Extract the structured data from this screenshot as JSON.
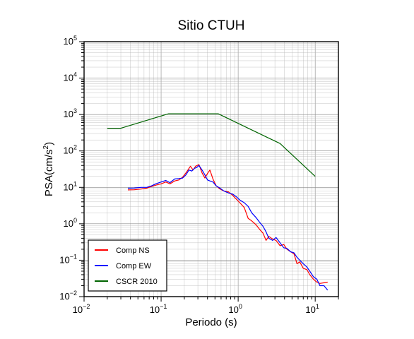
{
  "chart_data": {
    "type": "line",
    "title": "Sitio CTUH",
    "xlabel": "Periodo (s)",
    "ylabel_base": "PSA(cm/s",
    "ylabel_sup": "2",
    "ylabel_end": ")",
    "x_scale": "log",
    "y_scale": "log",
    "xlim": [
      0.01,
      20
    ],
    "ylim": [
      0.01,
      100000
    ],
    "grid": true,
    "legend_position": "bottom-left",
    "x_ticks": [
      {
        "base": "10",
        "exp": "−2"
      },
      {
        "base": "10",
        "exp": "−1"
      },
      {
        "base": "10",
        "exp": "0"
      },
      {
        "base": "10",
        "exp": "1"
      }
    ],
    "y_ticks": [
      {
        "base": "10",
        "exp": "−2"
      },
      {
        "base": "10",
        "exp": "−1"
      },
      {
        "base": "10",
        "exp": "0"
      },
      {
        "base": "10",
        "exp": "1"
      },
      {
        "base": "10",
        "exp": "2"
      },
      {
        "base": "10",
        "exp": "3"
      },
      {
        "base": "10",
        "exp": "4"
      },
      {
        "base": "10",
        "exp": "5"
      }
    ],
    "series": [
      {
        "name": "Comp NS",
        "color": "#ff0000",
        "points": [
          [
            0.037,
            8.5
          ],
          [
            0.045,
            8.6
          ],
          [
            0.055,
            9
          ],
          [
            0.065,
            9.5
          ],
          [
            0.075,
            10.5
          ],
          [
            0.085,
            11.5
          ],
          [
            0.1,
            12.5
          ],
          [
            0.115,
            14
          ],
          [
            0.13,
            12.5
          ],
          [
            0.15,
            15
          ],
          [
            0.17,
            16
          ],
          [
            0.19,
            19
          ],
          [
            0.21,
            25
          ],
          [
            0.24,
            38
          ],
          [
            0.26,
            30
          ],
          [
            0.28,
            38
          ],
          [
            0.31,
            42
          ],
          [
            0.34,
            25
          ],
          [
            0.37,
            18
          ],
          [
            0.4,
            24
          ],
          [
            0.43,
            30
          ],
          [
            0.47,
            17
          ],
          [
            0.52,
            11
          ],
          [
            0.58,
            9
          ],
          [
            0.65,
            8
          ],
          [
            0.75,
            7.5
          ],
          [
            0.85,
            6
          ],
          [
            0.95,
            4.7
          ],
          [
            1.05,
            3.8
          ],
          [
            1.2,
            2.8
          ],
          [
            1.35,
            1.4
          ],
          [
            1.5,
            1.2
          ],
          [
            1.7,
            0.95
          ],
          [
            1.9,
            0.7
          ],
          [
            2.1,
            0.55
          ],
          [
            2.3,
            0.35
          ],
          [
            2.5,
            0.45
          ],
          [
            2.8,
            0.38
          ],
          [
            3.1,
            0.35
          ],
          [
            3.5,
            0.25
          ],
          [
            3.9,
            0.27
          ],
          [
            4.3,
            0.2
          ],
          [
            4.8,
            0.17
          ],
          [
            5.3,
            0.15
          ],
          [
            5.8,
            0.08
          ],
          [
            6.3,
            0.09
          ],
          [
            7,
            0.06
          ],
          [
            7.8,
            0.055
          ],
          [
            8.5,
            0.04
          ],
          [
            9.5,
            0.03
          ],
          [
            10.5,
            0.025
          ],
          [
            11.5,
            0.023
          ],
          [
            13,
            0.024
          ],
          [
            14.5,
            0.025
          ]
        ]
      },
      {
        "name": "Comp EW",
        "color": "#0000ff",
        "points": [
          [
            0.037,
            9.5
          ],
          [
            0.045,
            9.6
          ],
          [
            0.055,
            10
          ],
          [
            0.065,
            10
          ],
          [
            0.075,
            11
          ],
          [
            0.085,
            12.5
          ],
          [
            0.1,
            14
          ],
          [
            0.115,
            15.5
          ],
          [
            0.13,
            13.5
          ],
          [
            0.15,
            17
          ],
          [
            0.17,
            17.5
          ],
          [
            0.19,
            18
          ],
          [
            0.21,
            22
          ],
          [
            0.23,
            30
          ],
          [
            0.25,
            28
          ],
          [
            0.27,
            33
          ],
          [
            0.29,
            35
          ],
          [
            0.31,
            40
          ],
          [
            0.34,
            30
          ],
          [
            0.37,
            22
          ],
          [
            0.4,
            16
          ],
          [
            0.43,
            15
          ],
          [
            0.47,
            14
          ],
          [
            0.52,
            11
          ],
          [
            0.58,
            9.5
          ],
          [
            0.65,
            8
          ],
          [
            0.75,
            7
          ],
          [
            0.85,
            6.5
          ],
          [
            0.95,
            5.5
          ],
          [
            1.05,
            4.5
          ],
          [
            1.2,
            3.8
          ],
          [
            1.35,
            3
          ],
          [
            1.5,
            2
          ],
          [
            1.7,
            1.5
          ],
          [
            1.9,
            1.1
          ],
          [
            2.1,
            0.85
          ],
          [
            2.3,
            0.6
          ],
          [
            2.5,
            0.4
          ],
          [
            2.8,
            0.35
          ],
          [
            3.1,
            0.42
          ],
          [
            3.5,
            0.3
          ],
          [
            3.9,
            0.22
          ],
          [
            4.3,
            0.21
          ],
          [
            4.8,
            0.17
          ],
          [
            5.3,
            0.16
          ],
          [
            5.8,
            0.12
          ],
          [
            6.3,
            0.1
          ],
          [
            7,
            0.08
          ],
          [
            7.8,
            0.065
          ],
          [
            8.5,
            0.05
          ],
          [
            9.5,
            0.035
          ],
          [
            10.5,
            0.03
          ],
          [
            11.5,
            0.02
          ],
          [
            13,
            0.02
          ],
          [
            14.5,
            0.015
          ]
        ]
      },
      {
        "name": "CSCR 2010",
        "color": "#006400",
        "points": [
          [
            0.02,
            420
          ],
          [
            0.03,
            420
          ],
          [
            0.125,
            1050
          ],
          [
            0.55,
            1050
          ],
          [
            3.5,
            160
          ],
          [
            10,
            20
          ]
        ]
      }
    ]
  }
}
